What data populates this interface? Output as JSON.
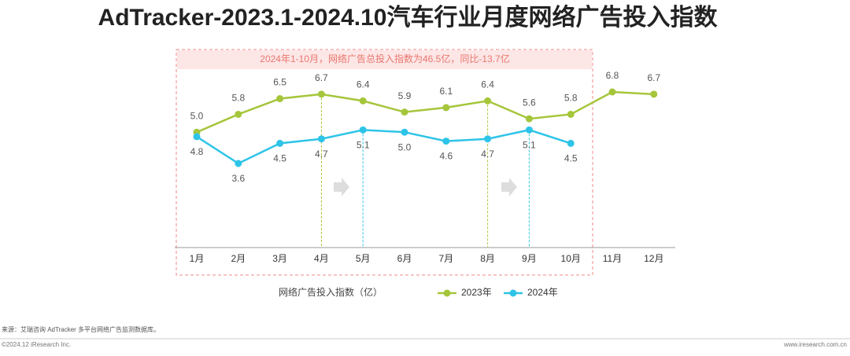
{
  "chart_data": {
    "type": "line",
    "title": "AdTracker-2023.1-2024.10汽车行业月度网络广告投入指数",
    "annotation": "2024年1-10月，网络广告总投入指数为46.5亿，同比-13.7亿",
    "y_label": "网络广告投入指数（亿）",
    "categories": [
      "1月",
      "2月",
      "3月",
      "4月",
      "5月",
      "6月",
      "7月",
      "8月",
      "9月",
      "10月",
      "11月",
      "12月"
    ],
    "series": [
      {
        "name": "2023年",
        "color": "#a5c63b",
        "values": [
          5.0,
          5.8,
          6.5,
          6.7,
          6.4,
          5.9,
          6.1,
          6.4,
          5.6,
          5.8,
          6.8,
          6.7
        ],
        "value_labels": [
          "5.0",
          "5.8",
          "6.5",
          "6.7",
          "6.4",
          "5.9",
          "6.1",
          "6.4",
          "5.6",
          "5.8",
          "6.8",
          "6.7"
        ]
      },
      {
        "name": "2024年",
        "color": "#2ec4e8",
        "values": [
          4.8,
          3.6,
          4.5,
          4.7,
          5.1,
          5.0,
          4.6,
          4.7,
          5.1,
          4.5,
          null,
          null
        ],
        "value_labels": [
          "4.8",
          "3.6",
          "4.5",
          "4.7",
          "5.1",
          "5.0",
          "4.6",
          "4.7",
          "5.1",
          "4.5",
          null,
          null
        ]
      }
    ],
    "source": "来源：艾瑞咨询 AdTracker 多平台网络广告监测数据库。",
    "copyright": "©2024.12 iResearch Inc.",
    "website": "www.iresearch.com.cn"
  }
}
